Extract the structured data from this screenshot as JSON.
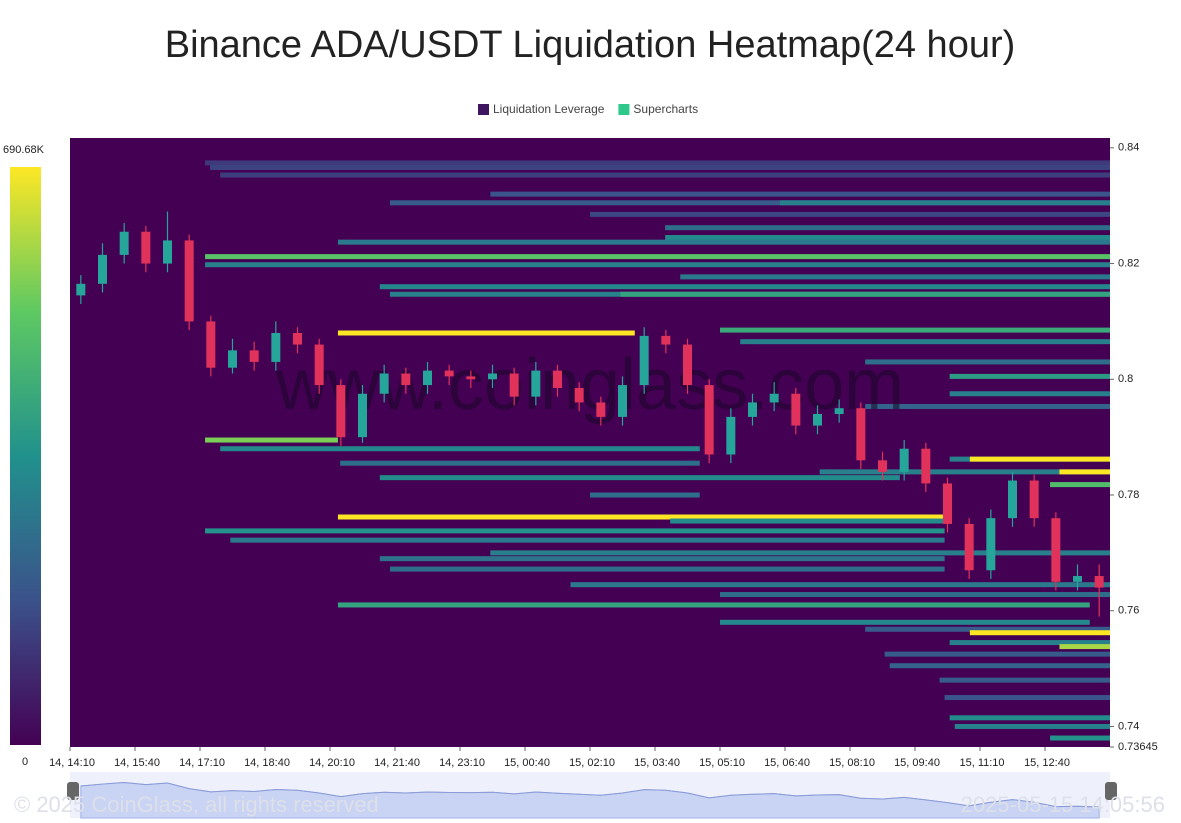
{
  "chart_data": {
    "type": "heatmap",
    "title": "Binance ADA/USDT Liquidation Heatmap(24 hour)",
    "watermark": "www.coinglass.com",
    "footer_left": "© 2025 CoinGlass, all rights reserved",
    "footer_right": "2025-05-15 14:05:56",
    "legend": [
      {
        "name": "Liquidation Leverage",
        "color": "#3e1560"
      },
      {
        "name": "Supercharts",
        "color": "#2ec98a"
      }
    ],
    "colorscale": [
      "#440154",
      "#3b528b",
      "#21918c",
      "#5ec962",
      "#fde725"
    ],
    "colorbar_lim": [
      0,
      690680
    ],
    "colorbar_ticks": [
      {
        "value": 690680,
        "label": "690.68K"
      },
      0
    ],
    "xlim": [
      0,
      1440
    ],
    "xticks": [
      {
        "value": 0,
        "label": "14, 14:10"
      },
      {
        "value": 90,
        "label": "14, 15:40"
      },
      {
        "value": 180,
        "label": "14, 17:10"
      },
      {
        "value": 270,
        "label": "14, 18:40"
      },
      {
        "value": 360,
        "label": "14, 20:10"
      },
      {
        "value": 450,
        "label": "14, 21:40"
      },
      {
        "value": 540,
        "label": "14, 23:10"
      },
      {
        "value": 630,
        "label": "15, 00:40"
      },
      {
        "value": 720,
        "label": "15, 02:10"
      },
      {
        "value": 810,
        "label": "15, 03:40"
      },
      {
        "value": 900,
        "label": "15, 05:10"
      },
      {
        "value": 990,
        "label": "15, 06:40"
      },
      {
        "value": 1080,
        "label": "15, 08:10"
      },
      {
        "value": 1170,
        "label": "15, 09:40"
      },
      {
        "value": 1260,
        "label": "15, 11:10"
      },
      {
        "value": 1350,
        "label": "15, 12:40"
      }
    ],
    "ylim": [
      0.73645,
      0.8417
    ],
    "yticks": [
      0.84,
      0.82,
      0.8,
      0.78,
      0.76,
      0.74,
      0.73645
    ],
    "bands": {
      "price": [
        0.8374,
        0.8366,
        0.8353,
        0.832,
        0.8305,
        0.8305,
        0.8285,
        0.8262,
        0.8245,
        0.8237,
        0.8212,
        0.8198,
        0.8177,
        0.816,
        0.8147,
        0.8147,
        0.8085,
        0.808,
        0.8065,
        0.803,
        0.8005,
        0.7975,
        0.7953,
        0.7895,
        0.788,
        0.7862,
        0.7862,
        0.7855,
        0.784,
        0.784,
        0.783,
        0.7818,
        0.78,
        0.7762,
        0.7755,
        0.7738,
        0.7722,
        0.77,
        0.769,
        0.7672,
        0.7645,
        0.7628,
        0.761,
        0.758,
        0.7568,
        0.7562,
        0.7545,
        0.7538,
        0.7525,
        0.7505,
        0.748,
        0.745,
        0.7415,
        0.74,
        0.738
      ],
      "start": [
        187,
        194,
        208,
        582,
        443,
        983,
        720,
        824,
        824,
        371,
        187,
        187,
        845,
        429,
        443,
        762,
        900,
        371,
        928,
        1101,
        1218,
        1218,
        1101,
        187,
        208,
        1218,
        1246,
        374,
        1038,
        1370,
        429,
        1357,
        720,
        371,
        831,
        187,
        222,
        582,
        429,
        443,
        693,
        900,
        371,
        900,
        1101,
        1246,
        1218,
        1370,
        1128,
        1135,
        1204,
        1211,
        1218,
        1225,
        1357
      ],
      "start_end_note_free": null,
      "end": [
        1440,
        1440,
        1440,
        1440,
        1440,
        1440,
        1440,
        1440,
        1440,
        1440,
        1440,
        1440,
        1440,
        1440,
        1440,
        1440,
        1440,
        782,
        1440,
        1440,
        1440,
        1440,
        1440,
        371,
        872,
        1440,
        1440,
        872,
        1440,
        1440,
        1149,
        1440,
        872,
        1211,
        1211,
        1211,
        1211,
        1440,
        1211,
        1211,
        1440,
        1440,
        1412,
        1412,
        1440,
        1440,
        1440,
        1440,
        1440,
        1440,
        1440,
        1440,
        1440,
        1440,
        1440
      ],
      "value": [
        120000,
        140000,
        130000,
        180000,
        200000,
        300000,
        150000,
        250000,
        330000,
        280000,
        500000,
        300000,
        280000,
        320000,
        300000,
        400000,
        420000,
        690680,
        300000,
        250000,
        380000,
        300000,
        220000,
        550000,
        320000,
        300000,
        690680,
        250000,
        300000,
        690680,
        330000,
        480000,
        250000,
        690680,
        330000,
        350000,
        280000,
        300000,
        260000,
        250000,
        280000,
        250000,
        400000,
        320000,
        200000,
        690680,
        300000,
        600000,
        200000,
        220000,
        200000,
        180000,
        330000,
        300000,
        350000
      ]
    },
    "candles": {
      "up_color": "#26a69a",
      "down_color": "#e0325a",
      "x": [
        15,
        45,
        75,
        105,
        135,
        165,
        195,
        225,
        255,
        285,
        315,
        345,
        375,
        405,
        435,
        465,
        495,
        525,
        555,
        585,
        615,
        645,
        675,
        705,
        735,
        765,
        795,
        825,
        855,
        885,
        915,
        945,
        975,
        1005,
        1035,
        1065,
        1095,
        1125,
        1155,
        1185,
        1215,
        1245,
        1275,
        1305,
        1335,
        1365,
        1395,
        1425
      ],
      "open": [
        0.8145,
        0.8165,
        0.8215,
        0.8255,
        0.82,
        0.824,
        0.81,
        0.802,
        0.805,
        0.803,
        0.808,
        0.806,
        0.799,
        0.79,
        0.7975,
        0.801,
        0.799,
        0.8015,
        0.8005,
        0.8,
        0.801,
        0.797,
        0.8015,
        0.7985,
        0.796,
        0.7935,
        0.799,
        0.8075,
        0.806,
        0.799,
        0.787,
        0.7935,
        0.796,
        0.7975,
        0.792,
        0.794,
        0.795,
        0.786,
        0.784,
        0.788,
        0.782,
        0.775,
        0.767,
        0.776,
        0.7825,
        0.776,
        0.765,
        0.766
      ],
      "high": [
        0.818,
        0.8235,
        0.827,
        0.8265,
        0.829,
        0.825,
        0.811,
        0.807,
        0.8065,
        0.81,
        0.809,
        0.807,
        0.8,
        0.799,
        0.8025,
        0.802,
        0.803,
        0.8025,
        0.8015,
        0.8025,
        0.802,
        0.803,
        0.8025,
        0.7995,
        0.797,
        0.8005,
        0.809,
        0.8085,
        0.807,
        0.8,
        0.795,
        0.7975,
        0.7995,
        0.7985,
        0.7955,
        0.7965,
        0.796,
        0.7875,
        0.7895,
        0.789,
        0.783,
        0.776,
        0.7775,
        0.784,
        0.7835,
        0.777,
        0.768,
        0.768
      ],
      "low": [
        0.813,
        0.815,
        0.82,
        0.8185,
        0.8185,
        0.8085,
        0.8005,
        0.801,
        0.8015,
        0.8015,
        0.8045,
        0.7975,
        0.7885,
        0.789,
        0.796,
        0.7975,
        0.7975,
        0.799,
        0.7985,
        0.7985,
        0.7955,
        0.7955,
        0.797,
        0.7945,
        0.792,
        0.792,
        0.7975,
        0.8045,
        0.7975,
        0.7855,
        0.7855,
        0.792,
        0.7945,
        0.7905,
        0.7905,
        0.7925,
        0.7845,
        0.7825,
        0.7825,
        0.7805,
        0.7735,
        0.7655,
        0.7655,
        0.7745,
        0.7745,
        0.7635,
        0.7635,
        0.759
      ],
      "close": [
        0.8165,
        0.8215,
        0.8255,
        0.82,
        0.824,
        0.81,
        0.802,
        0.805,
        0.803,
        0.808,
        0.806,
        0.799,
        0.79,
        0.7975,
        0.801,
        0.799,
        0.8015,
        0.8005,
        0.8,
        0.801,
        0.797,
        0.8015,
        0.7985,
        0.796,
        0.7935,
        0.799,
        0.8075,
        0.806,
        0.799,
        0.787,
        0.7935,
        0.796,
        0.7975,
        0.792,
        0.794,
        0.795,
        0.786,
        0.784,
        0.788,
        0.782,
        0.775,
        0.767,
        0.776,
        0.7825,
        0.776,
        0.765,
        0.766,
        0.764
      ]
    }
  }
}
